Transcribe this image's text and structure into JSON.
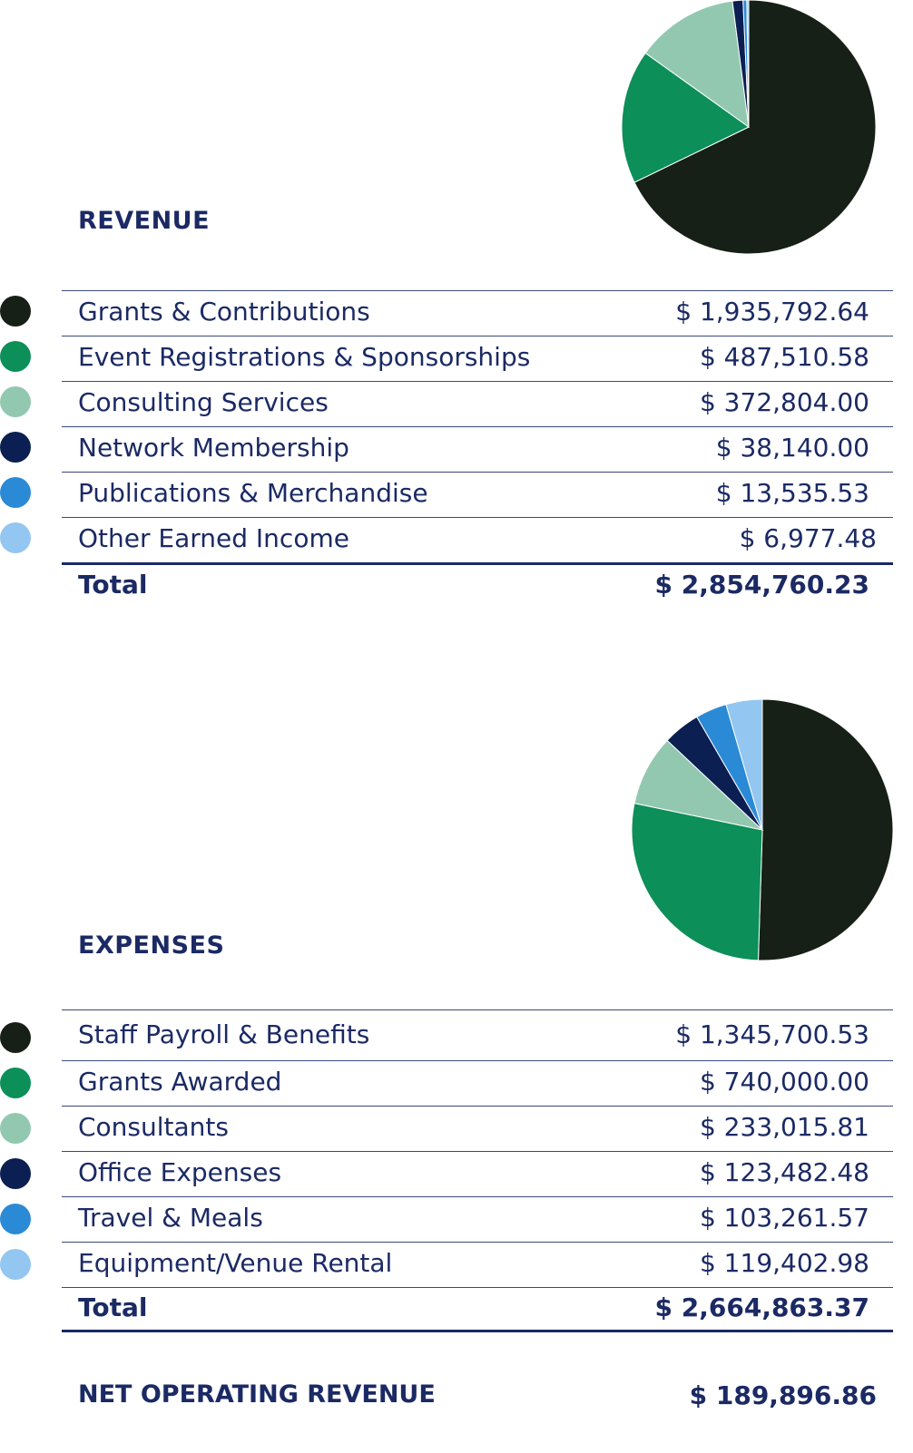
{
  "colors": [
    "#162016",
    "#0c8f58",
    "#93c8b0",
    "#0b1f52",
    "#2b8ad6",
    "#93c6f0"
  ],
  "chart_data": [
    {
      "type": "pie",
      "title": "REVENUE",
      "categories": [
        "Grants & Contributions",
        "Event Registrations & Sponsorships",
        "Consulting Services",
        "Network Membership",
        "Publications & Merchandise",
        "Other Earned Income"
      ],
      "values": [
        1935792.64,
        487510.58,
        372804.0,
        38140.0,
        13535.53,
        6977.48
      ],
      "labels": [
        "$ 1,935,792.64",
        "$ 487,510.58",
        "$ 372,804.00",
        "$ 38,140.00",
        "$ 13,535.53",
        "$ 6,977.48"
      ],
      "total_label": "Total",
      "total": "$ 2,854,760.23"
    },
    {
      "type": "pie",
      "title": "EXPENSES",
      "categories": [
        "Staff Payroll & Benefits",
        "Grants Awarded",
        "Consultants",
        "Office Expenses",
        "Travel & Meals",
        "Equipment/Venue Rental"
      ],
      "values": [
        1345700.53,
        740000.0,
        233015.81,
        123482.48,
        103261.57,
        119402.98
      ],
      "labels": [
        "$ 1,345,700.53",
        "$ 740,000.00",
        "$ 233,015.81",
        "$ 123,482.48",
        "$ 103,261.57",
        "$ 119,402.98"
      ],
      "total_label": "Total",
      "total": "$ 2,664,863.37"
    }
  ],
  "net": {
    "label": "NET OPERATING REVENUE",
    "value": "$ 189,896.86"
  }
}
